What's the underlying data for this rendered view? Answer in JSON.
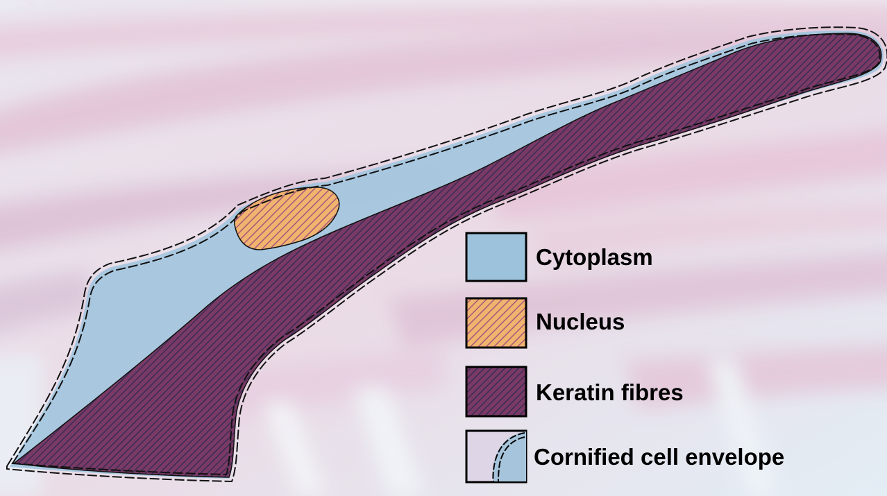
{
  "legend": {
    "items": [
      {
        "key": "cytoplasm",
        "label": "Cytoplasm",
        "fill": "#9dc3dc",
        "pattern": "solid"
      },
      {
        "key": "nucleus",
        "label": "Nucleus",
        "fill": "#eeb26e",
        "stripe": "#a8567c",
        "pattern": "hatched"
      },
      {
        "key": "keratin",
        "label": "Keratin fibres",
        "fill": "#7a3a66",
        "stripe": "#3d2a52",
        "pattern": "hatched"
      },
      {
        "key": "envelope",
        "label": "Cornified cell envelope",
        "outline": "#000000",
        "pattern": "dashed-double-outline"
      }
    ]
  },
  "colors": {
    "background_pink": "#e7c3d6",
    "background_blue": "#dde9f3",
    "cytoplasm": "#9dc3dc",
    "keratin": "#7a3a66",
    "nucleus": "#eeb26e",
    "outline": "#000000"
  }
}
